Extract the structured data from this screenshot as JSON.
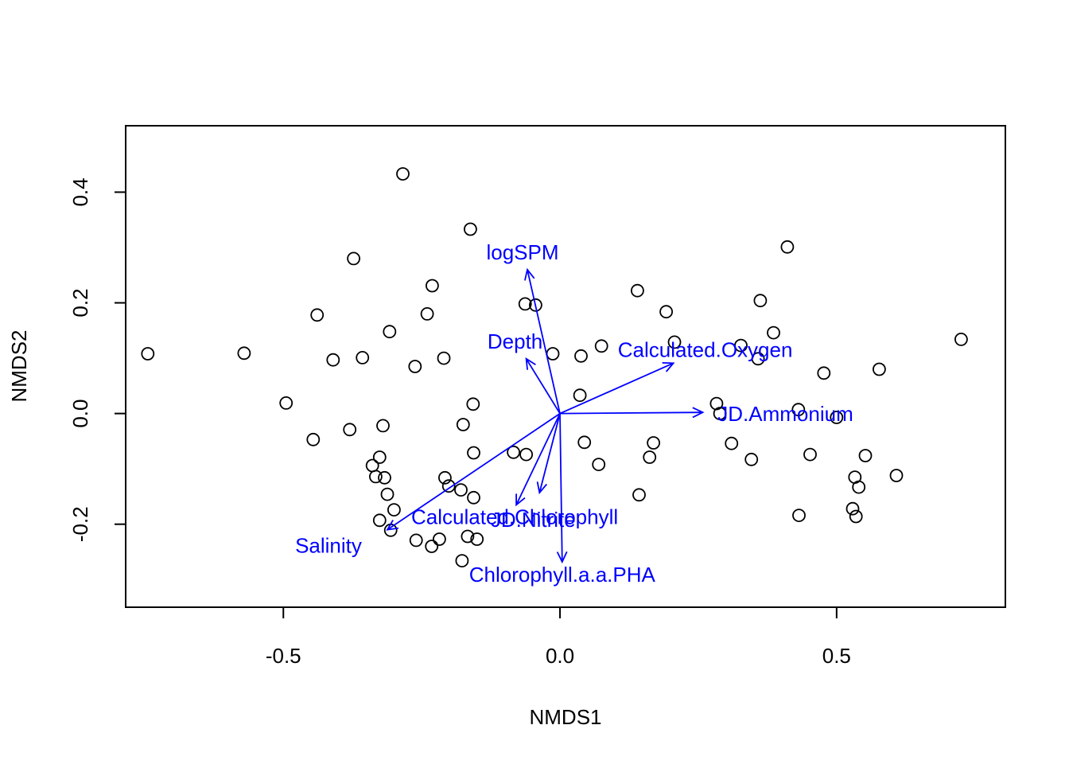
{
  "chart_data": {
    "type": "scatter",
    "xlabel": "NMDS1",
    "ylabel": "NMDS2",
    "xlim": [
      -0.785,
      0.805
    ],
    "ylim": [
      -0.35,
      0.52
    ],
    "x_ticks": [
      -0.5,
      0.0,
      0.5
    ],
    "x_tick_labels": [
      "-0.5",
      "0.0",
      "0.5"
    ],
    "y_ticks": [
      -0.2,
      0.0,
      0.2,
      0.4
    ],
    "y_tick_labels": [
      "-0.2",
      "0.0",
      "0.2",
      "0.4"
    ],
    "point_color": "#000000",
    "vector_color": "#0000ff",
    "points": [
      {
        "x": -0.745,
        "y": 0.108
      },
      {
        "x": -0.571,
        "y": 0.109
      },
      {
        "x": -0.495,
        "y": 0.019
      },
      {
        "x": -0.446,
        "y": -0.047
      },
      {
        "x": -0.439,
        "y": 0.178
      },
      {
        "x": -0.41,
        "y": 0.097
      },
      {
        "x": -0.38,
        "y": -0.029
      },
      {
        "x": -0.373,
        "y": 0.28
      },
      {
        "x": -0.357,
        "y": 0.101
      },
      {
        "x": -0.339,
        "y": -0.094
      },
      {
        "x": -0.333,
        "y": -0.114
      },
      {
        "x": -0.326,
        "y": -0.079
      },
      {
        "x": -0.32,
        "y": -0.022
      },
      {
        "x": -0.317,
        "y": -0.116
      },
      {
        "x": -0.312,
        "y": -0.146
      },
      {
        "x": -0.308,
        "y": 0.148
      },
      {
        "x": -0.3,
        "y": -0.174
      },
      {
        "x": -0.326,
        "y": -0.193
      },
      {
        "x": -0.306,
        "y": -0.211
      },
      {
        "x": -0.284,
        "y": 0.433
      },
      {
        "x": -0.262,
        "y": 0.085
      },
      {
        "x": -0.26,
        "y": -0.229
      },
      {
        "x": -0.24,
        "y": 0.18
      },
      {
        "x": -0.231,
        "y": 0.231
      },
      {
        "x": -0.232,
        "y": -0.24
      },
      {
        "x": -0.218,
        "y": -0.227
      },
      {
        "x": -0.21,
        "y": 0.1
      },
      {
        "x": -0.208,
        "y": -0.116
      },
      {
        "x": -0.201,
        "y": -0.131
      },
      {
        "x": -0.179,
        "y": -0.138
      },
      {
        "x": -0.175,
        "y": -0.02
      },
      {
        "x": -0.177,
        "y": -0.266
      },
      {
        "x": -0.167,
        "y": -0.222
      },
      {
        "x": -0.162,
        "y": 0.333
      },
      {
        "x": -0.157,
        "y": 0.017
      },
      {
        "x": -0.156,
        "y": -0.071
      },
      {
        "x": -0.156,
        "y": -0.152
      },
      {
        "x": -0.15,
        "y": -0.227
      },
      {
        "x": -0.084,
        "y": -0.07
      },
      {
        "x": -0.063,
        "y": 0.198
      },
      {
        "x": -0.061,
        "y": -0.074
      },
      {
        "x": -0.044,
        "y": 0.196
      },
      {
        "x": -0.013,
        "y": 0.108
      },
      {
        "x": 0.038,
        "y": 0.104
      },
      {
        "x": 0.036,
        "y": 0.033
      },
      {
        "x": 0.044,
        "y": -0.052
      },
      {
        "x": 0.07,
        "y": -0.092
      },
      {
        "x": 0.075,
        "y": 0.122
      },
      {
        "x": 0.14,
        "y": 0.222
      },
      {
        "x": 0.143,
        "y": -0.147
      },
      {
        "x": 0.162,
        "y": -0.079
      },
      {
        "x": 0.169,
        "y": -0.053
      },
      {
        "x": 0.192,
        "y": 0.184
      },
      {
        "x": 0.207,
        "y": 0.129
      },
      {
        "x": 0.283,
        "y": 0.018
      },
      {
        "x": 0.289,
        "y": 0.0
      },
      {
        "x": 0.31,
        "y": -0.054
      },
      {
        "x": 0.327,
        "y": 0.123
      },
      {
        "x": 0.346,
        "y": -0.083
      },
      {
        "x": 0.358,
        "y": 0.099
      },
      {
        "x": 0.362,
        "y": 0.204
      },
      {
        "x": 0.386,
        "y": 0.146
      },
      {
        "x": 0.411,
        "y": 0.301
      },
      {
        "x": 0.431,
        "y": 0.007
      },
      {
        "x": 0.432,
        "y": -0.184
      },
      {
        "x": 0.452,
        "y": -0.074
      },
      {
        "x": 0.477,
        "y": 0.073
      },
      {
        "x": 0.5,
        "y": -0.007
      },
      {
        "x": 0.529,
        "y": -0.172
      },
      {
        "x": 0.533,
        "y": -0.115
      },
      {
        "x": 0.535,
        "y": -0.186
      },
      {
        "x": 0.54,
        "y": -0.133
      },
      {
        "x": 0.552,
        "y": -0.076
      },
      {
        "x": 0.577,
        "y": 0.08
      },
      {
        "x": 0.608,
        "y": -0.112
      },
      {
        "x": 0.725,
        "y": 0.134
      }
    ],
    "vectors": [
      {
        "label": "logSPM",
        "x": -0.059,
        "y": 0.26
      },
      {
        "label": "Depth",
        "x": -0.061,
        "y": 0.099
      },
      {
        "label": "Calculated.Oxygen",
        "x": 0.205,
        "y": 0.091
      },
      {
        "label": "JD.Ammonium",
        "x": 0.258,
        "y": 0.002
      },
      {
        "label": "Calculated.Chlorophyll",
        "x": -0.079,
        "y": -0.165
      },
      {
        "label": "JD.Nitrite",
        "x": -0.037,
        "y": -0.143
      },
      {
        "label": "Chlorophyll.a.a.PHA",
        "x": 0.004,
        "y": -0.268
      },
      {
        "label": "Salinity",
        "x": -0.312,
        "y": -0.21
      }
    ]
  }
}
